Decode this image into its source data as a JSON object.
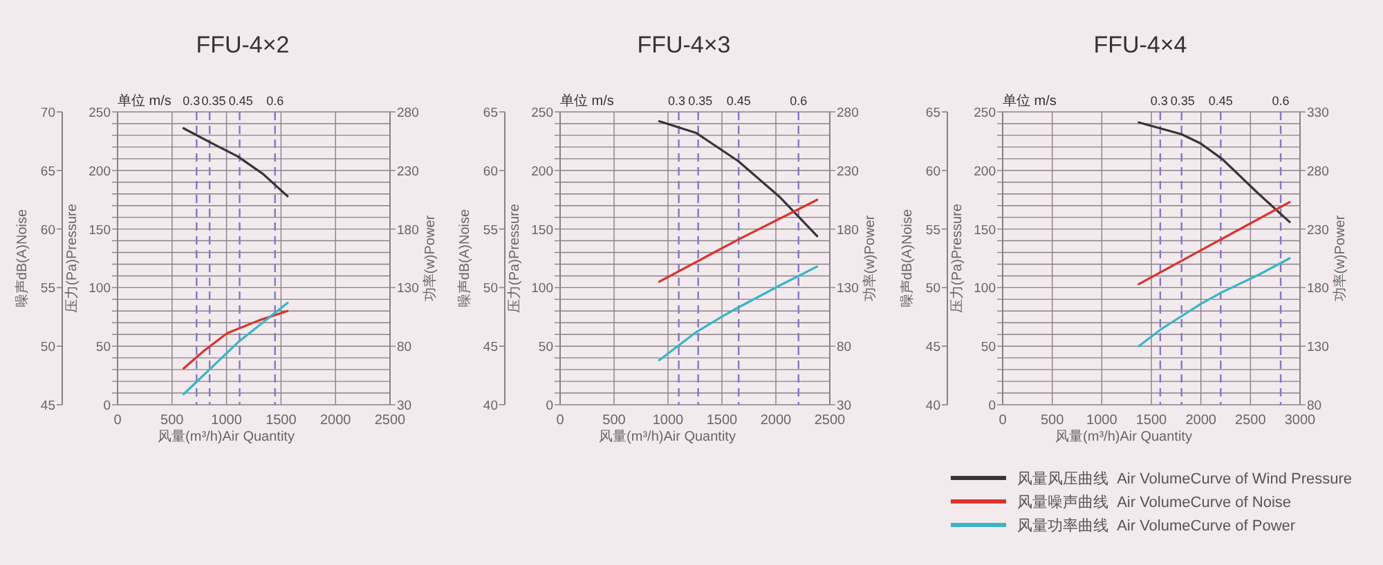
{
  "chart_data": [
    {
      "type": "line",
      "title": "FFU-4×2",
      "xlabel": "风量(m³/h)Air Quantity",
      "ylabel": "压力(Pa)Pressure",
      "y2label": "功率(w)Power",
      "y3label": "噪声dB(A)Noise",
      "xlim": [
        0,
        2500
      ],
      "xticks": [
        0,
        500,
        1000,
        1500,
        2000,
        2500
      ],
      "ylim": [
        0,
        250
      ],
      "yticks": [
        0,
        {
          "value": 10,
          "label": null
        },
        {
          "value": 20,
          "label": null
        },
        {
          "value": 30,
          "label": null
        },
        {
          "value": 40,
          "label": null
        },
        50,
        {
          "value": 60,
          "label": null
        },
        {
          "value": 70,
          "label": null
        },
        {
          "value": 80,
          "label": null
        },
        {
          "value": 90,
          "label": null
        },
        100,
        {
          "value": 110,
          "label": null
        },
        {
          "value": 120,
          "label": null
        },
        {
          "value": 130,
          "label": null
        },
        {
          "value": 140,
          "label": null
        },
        150,
        {
          "value": 160,
          "label": null
        },
        {
          "value": 170,
          "label": null
        },
        {
          "value": 180,
          "label": null
        },
        {
          "value": 190,
          "label": null
        },
        200,
        {
          "value": 210,
          "label": null
        },
        {
          "value": 220,
          "label": null
        },
        {
          "value": 230,
          "label": null
        },
        {
          "value": 240,
          "label": null
        },
        250
      ],
      "y2lim": [
        30,
        280
      ],
      "y2ticks": [
        30,
        80,
        130,
        180,
        230,
        280
      ],
      "y3lim": [
        45,
        70
      ],
      "y3ticks": [
        45,
        50,
        55,
        60,
        65,
        70
      ],
      "grid": true,
      "annotations": [
        "单位 m/s",
        {
          "text": "0.3",
          "x": 725,
          "y": 250
        },
        {
          "text": "0.35",
          "x": 845,
          "y": 250
        },
        {
          "text": "0.45",
          "x": 1120,
          "y": 250
        },
        {
          "text": "0.6",
          "x": 1445,
          "y": 250
        }
      ],
      "ref_lines": [
        {
          "axis": "x",
          "value": 725,
          "line_style": "dashed",
          "color": "#8078c8"
        },
        {
          "axis": "x",
          "value": 845,
          "line_style": "dashed",
          "color": "#8078c8"
        },
        {
          "axis": "x",
          "value": 1120,
          "line_style": "dashed",
          "color": "#8078c8"
        },
        {
          "axis": "x",
          "value": 1445,
          "line_style": "dashed",
          "color": "#8078c8"
        }
      ],
      "series": [
        {
          "color": "#3a3236",
          "axis": "y",
          "x": [
            606,
            850,
            1102,
            1335,
            1560
          ],
          "values": [
            236,
            224,
            212,
            197,
            178
          ]
        },
        {
          "color": "#d9342b",
          "axis": "y3",
          "x": [
            606,
            792,
            1005,
            1297,
            1560
          ],
          "values": [
            48.1,
            49.6,
            51.1,
            52.2,
            53.0
          ]
        },
        {
          "color": "#3bb4c8",
          "axis": "y2",
          "x": [
            606,
            1102,
            1560
          ],
          "values": [
            39,
            83,
            117
          ]
        }
      ]
    },
    {
      "type": "line",
      "title": "FFU-4×3",
      "xlabel": "风量(m³/h)Air Quantity",
      "ylabel": "压力(Pa)Pressure",
      "y2label": "功率(w)Power",
      "y3label": "噪声dB(A)Noise",
      "xlim": [
        0,
        2500
      ],
      "xticks": [
        0,
        500,
        1000,
        1500,
        2000,
        2500
      ],
      "ylim": [
        0,
        250
      ],
      "yticks": [
        0,
        {
          "value": 10,
          "label": null
        },
        {
          "value": 20,
          "label": null
        },
        {
          "value": 30,
          "label": null
        },
        {
          "value": 40,
          "label": null
        },
        50,
        {
          "value": 60,
          "label": null
        },
        {
          "value": 70,
          "label": null
        },
        {
          "value": 80,
          "label": null
        },
        {
          "value": 90,
          "label": null
        },
        100,
        {
          "value": 110,
          "label": null
        },
        {
          "value": 120,
          "label": null
        },
        {
          "value": 130,
          "label": null
        },
        {
          "value": 140,
          "label": null
        },
        150,
        {
          "value": 160,
          "label": null
        },
        {
          "value": 170,
          "label": null
        },
        {
          "value": 180,
          "label": null
        },
        {
          "value": 190,
          "label": null
        },
        200,
        {
          "value": 210,
          "label": null
        },
        {
          "value": 220,
          "label": null
        },
        {
          "value": 230,
          "label": null
        },
        {
          "value": 240,
          "label": null
        },
        250
      ],
      "y2lim": [
        30,
        280
      ],
      "y2ticks": [
        30,
        80,
        130,
        180,
        230,
        280
      ],
      "y3lim": [
        40,
        65
      ],
      "y3ticks": [
        40,
        45,
        50,
        55,
        60,
        65
      ],
      "grid": true,
      "annotations": [
        "单位 m/s",
        {
          "text": "0.3",
          "x": 1100,
          "y": 250
        },
        {
          "text": "0.35",
          "x": 1280,
          "y": 250
        },
        {
          "text": "0.45",
          "x": 1655,
          "y": 250
        },
        {
          "text": "0.6",
          "x": 2210,
          "y": 250
        }
      ],
      "ref_lines": [
        {
          "axis": "x",
          "value": 1100,
          "line_style": "dashed",
          "color": "#8078c8"
        },
        {
          "axis": "x",
          "value": 1280,
          "line_style": "dashed",
          "color": "#8078c8"
        },
        {
          "axis": "x",
          "value": 1655,
          "line_style": "dashed",
          "color": "#8078c8"
        },
        {
          "axis": "x",
          "value": 2210,
          "line_style": "dashed",
          "color": "#8078c8"
        }
      ],
      "series": [
        {
          "color": "#3a3236",
          "axis": "y",
          "x": [
            919,
            1262,
            1651,
            2040,
            2383
          ],
          "values": [
            242,
            232,
            208,
            177,
            144
          ]
        },
        {
          "color": "#d9342b",
          "axis": "y3",
          "x": [
            919,
            1651,
            2383
          ],
          "values": [
            50.5,
            54.1,
            57.5
          ]
        },
        {
          "color": "#3bb4c8",
          "axis": "y2",
          "x": [
            919,
            1262,
            1495,
            1651,
            2040,
            2383
          ],
          "values": [
            68,
            92,
            105,
            113,
            132,
            148
          ]
        }
      ]
    },
    {
      "type": "line",
      "title": "FFU-4×4",
      "xlabel": "风量(m³/h)Air Quantity",
      "ylabel": "压力(Pa)Pressure",
      "y2label": "功率(w)Power",
      "y3label": "噪声dB(A)Noise",
      "xlim": [
        0,
        3000
      ],
      "xticks": [
        0,
        500,
        1000,
        1500,
        2000,
        2500,
        3000
      ],
      "ylim": [
        0,
        250
      ],
      "yticks": [
        0,
        {
          "value": 10,
          "label": null
        },
        {
          "value": 20,
          "label": null
        },
        {
          "value": 30,
          "label": null
        },
        {
          "value": 40,
          "label": null
        },
        50,
        {
          "value": 60,
          "label": null
        },
        {
          "value": 70,
          "label": null
        },
        {
          "value": 80,
          "label": null
        },
        {
          "value": 90,
          "label": null
        },
        100,
        {
          "value": 110,
          "label": null
        },
        {
          "value": 120,
          "label": null
        },
        {
          "value": 130,
          "label": null
        },
        {
          "value": 140,
          "label": null
        },
        150,
        {
          "value": 160,
          "label": null
        },
        {
          "value": 170,
          "label": null
        },
        {
          "value": 180,
          "label": null
        },
        {
          "value": 190,
          "label": null
        },
        200,
        {
          "value": 210,
          "label": null
        },
        {
          "value": 220,
          "label": null
        },
        {
          "value": 230,
          "label": null
        },
        {
          "value": 240,
          "label": null
        },
        250
      ],
      "y2lim": [
        80,
        330
      ],
      "y2ticks": [
        80,
        130,
        180,
        230,
        280,
        330
      ],
      "y3lim": [
        40,
        65
      ],
      "y3ticks": [
        40,
        45,
        50,
        55,
        60,
        65
      ],
      "grid": true,
      "annotations": [
        "单位 m/s",
        {
          "text": "0.3",
          "x": 1590,
          "y": 250
        },
        {
          "text": "0.35",
          "x": 1805,
          "y": 250
        },
        {
          "text": "0.45",
          "x": 2200,
          "y": 250
        },
        {
          "text": "0.6",
          "x": 2805,
          "y": 250
        }
      ],
      "ref_lines": [
        {
          "axis": "x",
          "value": 1590,
          "line_style": "dashed",
          "color": "#8078c8"
        },
        {
          "axis": "x",
          "value": 1805,
          "line_style": "dashed",
          "color": "#8078c8"
        },
        {
          "axis": "x",
          "value": 2200,
          "line_style": "dashed",
          "color": "#8078c8"
        },
        {
          "axis": "x",
          "value": 2805,
          "line_style": "dashed",
          "color": "#8078c8"
        }
      ],
      "legend": "bottom",
      "series": [
        {
          "name": "风量风压曲线  Air VolumeCurve of Wind Pressure",
          "color": "#3a3236",
          "axis": "y",
          "x": [
            1373,
            1803,
            1998,
            2212,
            2583,
            2895
          ],
          "values": [
            241,
            231,
            223,
            210,
            180,
            156
          ]
        },
        {
          "name": "风量噪声曲线  Air VolumeCurve of Noise",
          "color": "#d9342b",
          "axis": "y3",
          "x": [
            1373,
            2134,
            2895
          ],
          "values": [
            50.3,
            53.8,
            57.3
          ]
        },
        {
          "name": "风量功率曲线  Air VolumeCurve of Power",
          "color": "#3bb4c8",
          "axis": "y2",
          "x": [
            1373,
            1607,
            1998,
            2212,
            2583,
            2895
          ],
          "values": [
            130,
            145,
            166,
            176,
            191,
            205
          ]
        }
      ]
    }
  ]
}
